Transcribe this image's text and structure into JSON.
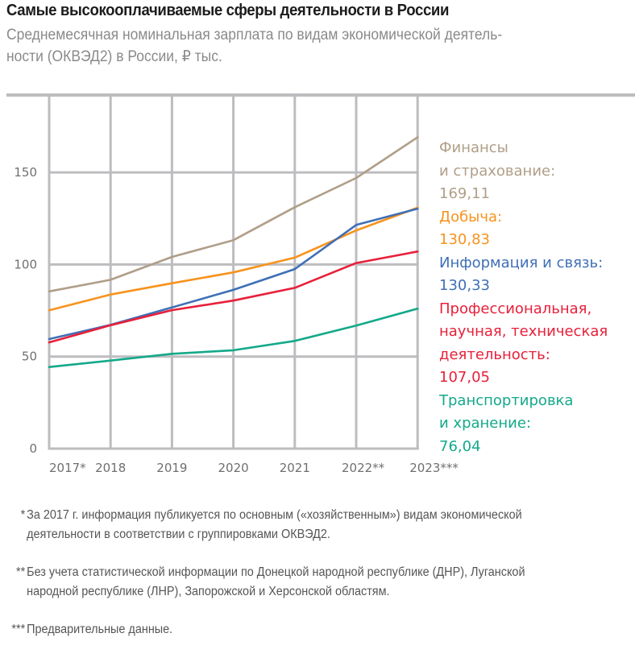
{
  "header": {
    "title": "Самые высокооплачиваемые сферы деятельности в России",
    "subtitle_lines": [
      "Среднемесячная номинальная зарплата по видам экономической деятель-",
      "ности (ОКВЭД2) в России, ₽ тыс."
    ]
  },
  "chart_data": {
    "type": "line",
    "title": "Самые высокооплачиваемые сферы деятельности в России",
    "subtitle": "Среднемесячная номинальная зарплата по видам экономической деятельности (ОКВЭД2) в России, ₽ тыс.",
    "xlabel": "",
    "ylabel": "₽ тыс.",
    "categories": [
      "2017*",
      "2018",
      "2019",
      "2020",
      "2021",
      "2022**",
      "2023***"
    ],
    "y_ticks": [
      0,
      50,
      100,
      150
    ],
    "ylim": [
      0,
      175
    ],
    "grid": true,
    "legend_position": "right",
    "series": [
      {
        "name": "Финансы и страхование",
        "label_lines": [
          "Финансы",
          "и страхование:"
        ],
        "final_value_label": "169,11",
        "color": "#b09e88",
        "values": [
          85.4,
          91.7,
          104.1,
          113.2,
          131.1,
          147.0,
          169.11
        ]
      },
      {
        "name": "Добыча",
        "label_lines": [
          "Добыча:"
        ],
        "final_value_label": "130,83",
        "color": "#f7931e",
        "values": [
          75.1,
          83.7,
          89.8,
          95.7,
          103.7,
          118.5,
          130.83
        ]
      },
      {
        "name": "Информация и связь",
        "label_lines": [
          "Информация и связь:"
        ],
        "final_value_label": "130,33",
        "color": "#3f6fb6",
        "values": [
          59.5,
          67.2,
          76.7,
          86.2,
          97.5,
          121.5,
          130.33
        ]
      },
      {
        "name": "Профессиональная, научная, техническая деятельность",
        "label_lines": [
          "Профессиональная,",
          "научная, техническая",
          "деятельность:"
        ],
        "final_value_label": "107,05",
        "color": "#e8203a",
        "values": [
          57.7,
          67.0,
          75.2,
          80.4,
          87.3,
          100.8,
          107.05
        ]
      },
      {
        "name": "Транспортировка и хранение",
        "label_lines": [
          "Транспортировка",
          "и хранение:"
        ],
        "final_value_label": "76,04",
        "color": "#14a98a",
        "values": [
          44.3,
          47.8,
          51.5,
          53.4,
          58.5,
          66.8,
          76.04
        ]
      }
    ],
    "grid_color": "#bdbdc0"
  },
  "footnotes": [
    {
      "mark": "*",
      "lines": [
        "За 2017 г. информация публикуется по основным («хозяйственным») видам экономической",
        "деятельности в соответствии с группировками ОКВЭД2."
      ]
    },
    {
      "mark": "**",
      "lines": [
        "Без учета статистической информации по Донецкой народной республике (ДНР), Луганской",
        "народной республике (ЛНР), Запорожской и Херсонской областям."
      ]
    },
    {
      "mark": "***",
      "lines": [
        "Предварительные данные."
      ]
    }
  ]
}
